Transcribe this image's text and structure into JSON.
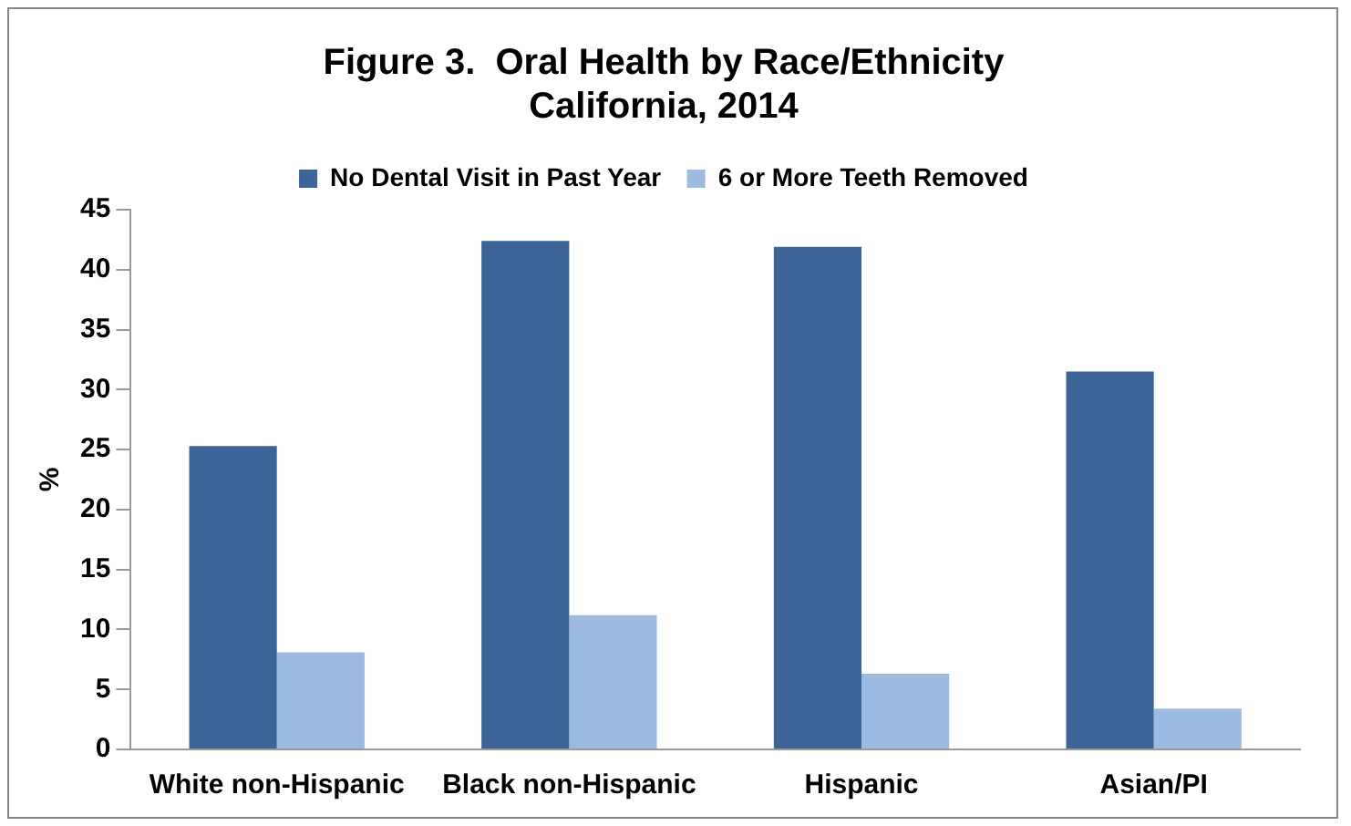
{
  "chart_data": {
    "type": "bar",
    "title": [
      "Figure 3.  Oral Health by Race/Ethnicity",
      "California, 2014"
    ],
    "ylabel": "%",
    "categories": [
      "White non-Hispanic",
      "Black non-Hispanic",
      "Hispanic",
      "Asian/PI"
    ],
    "series": [
      {
        "name": "No Dental Visit in Past Year",
        "color": "#3c6496",
        "values": [
          25.3,
          42.4,
          41.9,
          31.5
        ]
      },
      {
        "name": "6 or More Teeth Removed",
        "color": "#9dbbe0",
        "values": [
          8.1,
          11.2,
          6.3,
          3.4
        ]
      }
    ],
    "ylim": [
      0,
      45
    ],
    "yticks": [
      0,
      5,
      10,
      15,
      20,
      25,
      30,
      35,
      40,
      45
    ],
    "grid": false,
    "legend": "top"
  }
}
